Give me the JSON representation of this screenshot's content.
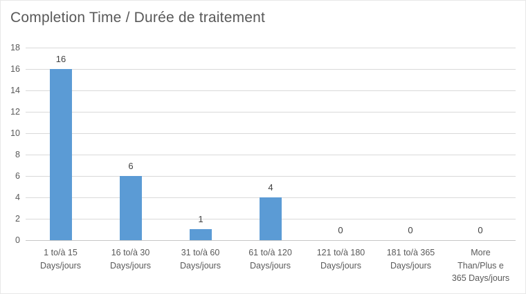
{
  "chart_data": {
    "type": "bar",
    "title": "Completion Time / Durée de traitement",
    "categories": [
      "1 to/à 15\nDays/jours",
      "16 to/à 30\nDays/jours",
      "31 to/à 60\nDays/jours",
      "61 to/à 120\nDays/jours",
      "121 to/à 180\nDays/jours",
      "181 to/à 365\nDays/jours",
      "More\nThan/Plus e\n365 Days/jours"
    ],
    "values": [
      16,
      6,
      1,
      4,
      0,
      0,
      0
    ],
    "xlabel": "",
    "ylabel": "",
    "ylim": [
      0,
      18
    ],
    "yticks": [
      0,
      2,
      4,
      6,
      8,
      10,
      12,
      14,
      16,
      18
    ],
    "grid": true,
    "legend": false,
    "data_labels": true,
    "colors": {
      "bar": "#5B9BD5",
      "gridline": "#D9D9D9",
      "axis_line": "#C6C6C6",
      "title_text": "#595959",
      "tick_text": "#595959",
      "data_label_text": "#404040",
      "background": "#FFFFFF",
      "border": "#E7E7E7"
    }
  }
}
